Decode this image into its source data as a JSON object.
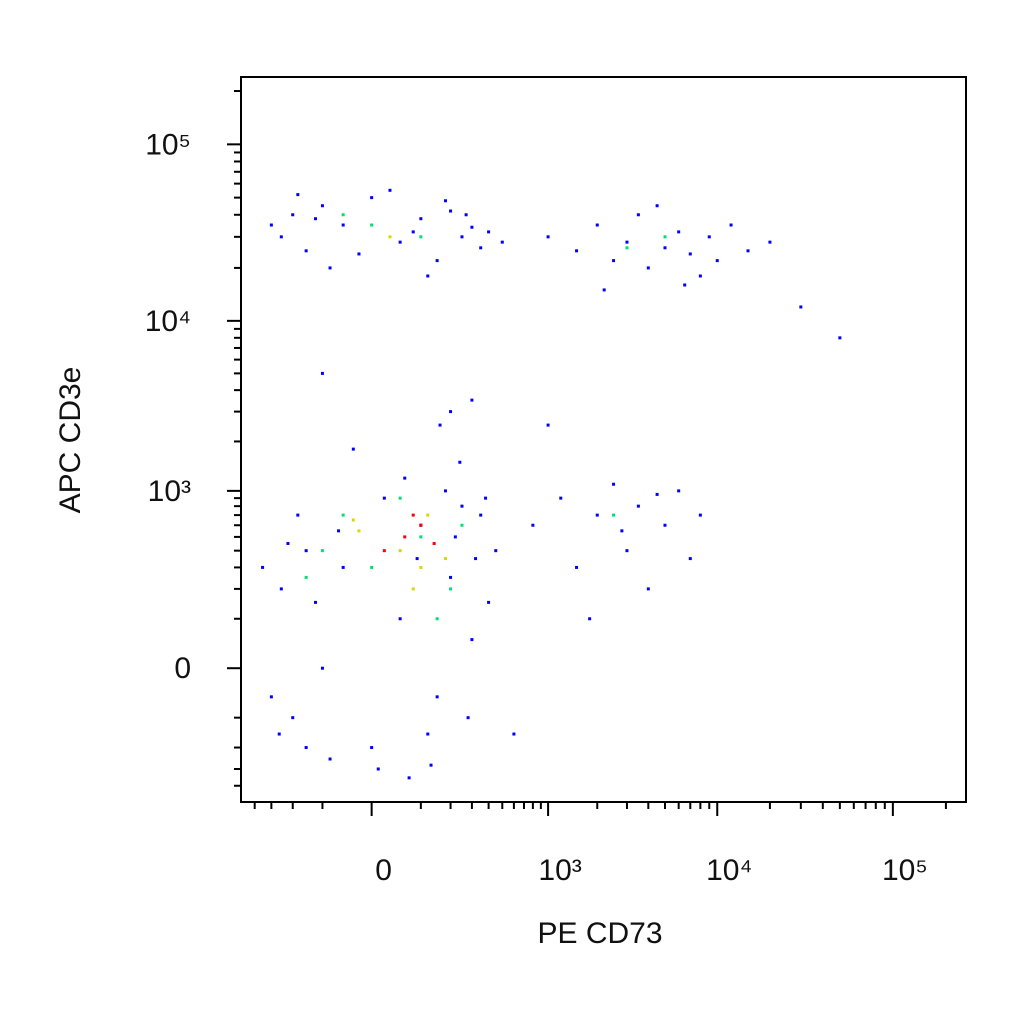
{
  "chart_data": {
    "type": "scatter",
    "xlabel": "PE CD73",
    "ylabel": "APC CD3e",
    "xscale": "biexponential",
    "yscale": "biexponential",
    "xlim": [
      -500,
      260000
    ],
    "ylim": [
      -520,
      240000
    ],
    "xticks": [
      0,
      {
        "value": 1000,
        "label": "10³"
      },
      {
        "value": 10000,
        "label": "10⁴"
      },
      {
        "value": 100000,
        "label": "10⁵"
      }
    ],
    "yticks": [
      0,
      {
        "value": 1000,
        "label": "10³"
      },
      {
        "value": 10000,
        "label": "10⁴"
      },
      {
        "value": 100000,
        "label": "10⁵"
      }
    ],
    "xminorticks": [
      -400,
      -300,
      -200,
      -100,
      100,
      200,
      300,
      400,
      500,
      600,
      700,
      800,
      900,
      2000,
      3000,
      4000,
      5000,
      6000,
      7000,
      8000,
      9000,
      20000,
      30000,
      40000,
      50000,
      60000,
      70000,
      80000,
      90000,
      200000
    ],
    "yminorticks": [
      -400,
      -300,
      -200,
      -100,
      100,
      200,
      300,
      400,
      500,
      600,
      700,
      800,
      900,
      2000,
      3000,
      4000,
      5000,
      6000,
      7000,
      8000,
      9000,
      20000,
      30000,
      40000,
      50000,
      60000,
      70000,
      80000,
      90000,
      200000
    ],
    "series": [
      {
        "color": "#0000ff",
        "x": [
          -250,
          -200,
          -150,
          -100,
          -50,
          0,
          50,
          100,
          150,
          200,
          250,
          300,
          -180,
          -80,
          20,
          120,
          220,
          320,
          400,
          -300,
          -120,
          60,
          180,
          280,
          -220,
          350,
          10,
          90,
          -60,
          240,
          -350,
          130,
          450,
          -30,
          160,
          -150,
          380,
          70,
          -260,
          200,
          -250,
          -200,
          -150,
          -100,
          -50,
          0,
          50,
          100,
          150,
          200,
          250,
          300,
          350,
          -300,
          -80,
          30,
          120,
          180,
          400,
          -180,
          80,
          -20,
          270,
          500,
          -120,
          1000,
          1500,
          2000,
          2500,
          3000,
          3500,
          4000,
          5000,
          6000,
          7000,
          8000,
          9000,
          10000,
          12000,
          15000,
          20000,
          2200,
          4500,
          6500,
          30000,
          800,
          1200,
          1500,
          2000,
          2500,
          3000,
          3500,
          4000,
          5000,
          6000,
          7000,
          8000,
          1800,
          2800,
          4500,
          -100,
          300,
          1000,
          50000,
          600
        ],
        "values": [
          200,
          -100,
          400,
          0,
          300,
          -200,
          100,
          600,
          -50,
          250,
          800,
          50,
          700,
          -250,
          900,
          -150,
          500,
          350,
          150,
          -50,
          150,
          1200,
          1000,
          -100,
          450,
          700,
          -300,
          350,
          550,
          1500,
          300,
          -280,
          400,
          1800,
          2500,
          -200,
          900,
          -350,
          -150,
          3000,
          30000,
          40000,
          25000,
          45000,
          35000,
          50000,
          28000,
          38000,
          22000,
          42000,
          30000,
          34000,
          26000,
          35000,
          20000,
          55000,
          18000,
          48000,
          32000,
          52000,
          32000,
          24000,
          40000,
          28000,
          38000,
          30000,
          25000,
          35000,
          22000,
          28000,
          40000,
          20000,
          26000,
          32000,
          24000,
          18000,
          30000,
          22000,
          35000,
          25000,
          28000,
          15000,
          45000,
          16000,
          12000,
          600,
          900,
          300,
          700,
          1100,
          400,
          800,
          200,
          600,
          1000,
          350,
          700,
          100,
          550,
          950,
          5000,
          3500,
          2500,
          8000,
          -150
        ]
      },
      {
        "color": "#00e070",
        "x": [
          0,
          100,
          -50,
          200,
          50,
          -100,
          150,
          0,
          100,
          -50,
          3000,
          5000,
          2500,
          250,
          -150
        ],
        "values": [
          300,
          500,
          700,
          200,
          900,
          400,
          100,
          35000,
          30000,
          40000,
          26000,
          30000,
          700,
          600,
          250
        ]
      },
      {
        "color": "#d8d800",
        "x": [
          50,
          120,
          -20,
          180,
          80,
          30,
          -30,
          100
        ],
        "values": [
          400,
          700,
          550,
          350,
          200,
          30000,
          650,
          300
        ]
      },
      {
        "color": "#ff0000",
        "x": [
          60,
          100,
          20,
          140,
          80
        ],
        "values": [
          500,
          600,
          400,
          450,
          700
        ]
      }
    ]
  }
}
